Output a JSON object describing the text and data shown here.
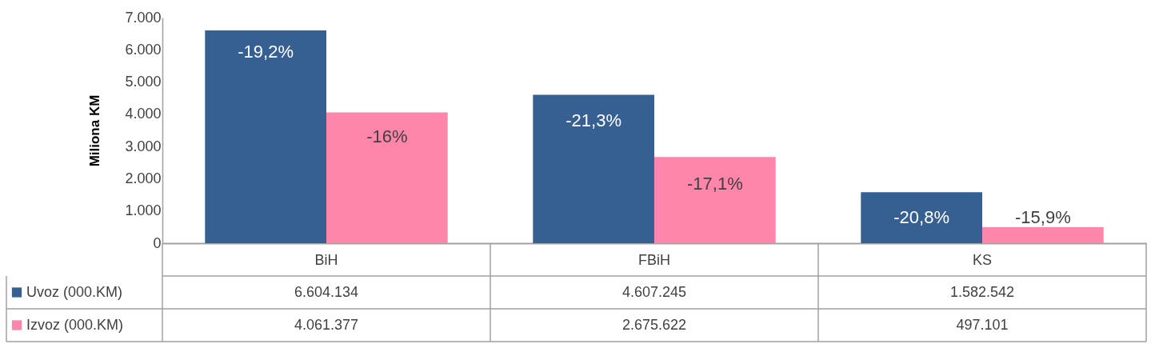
{
  "chart_data": {
    "type": "bar",
    "ylabel": "Miliona KM",
    "categories": [
      "BiH",
      "FBiH",
      "KS"
    ],
    "series": [
      {
        "name": "Uvoz (000.KM)",
        "color": "#376092",
        "values": [
          6604.134,
          4607.245,
          1582.542
        ]
      },
      {
        "name": "Izvoz (000.KM)",
        "color": "#ff86ab",
        "values": [
          4061.377,
          2675.622,
          497.101
        ]
      }
    ],
    "ylim": [
      0,
      7000
    ],
    "yticks": [
      {
        "value": 0,
        "label": "0"
      },
      {
        "value": 1000,
        "label": "1.000"
      },
      {
        "value": 2000,
        "label": "2.000"
      },
      {
        "value": 3000,
        "label": "3.000"
      },
      {
        "value": 4000,
        "label": "4.000"
      },
      {
        "value": 5000,
        "label": "5.000"
      },
      {
        "value": 6000,
        "label": "6.000"
      },
      {
        "value": 7000,
        "label": "7.000"
      }
    ],
    "annotations": [
      {
        "text": "-19,2%",
        "x": "BiH",
        "y": 5930
      },
      {
        "text": "-16%",
        "x": "BiH",
        "y": 3290
      },
      {
        "text": "-21,3%",
        "x": "FBiH",
        "y": 3790
      },
      {
        "text": "-17,1%",
        "x": "FBiH",
        "y": 1840
      },
      {
        "text": "-20,8%",
        "x": "KS",
        "y": 800
      },
      {
        "text": "-15,9%",
        "x": "KS",
        "y": 800
      },
      "6.604.134",
      "4.607.245",
      "1.582.542",
      "4.061.377",
      "2.675.622",
      "497.101"
    ],
    "grid": false,
    "legend": "bottom left"
  }
}
